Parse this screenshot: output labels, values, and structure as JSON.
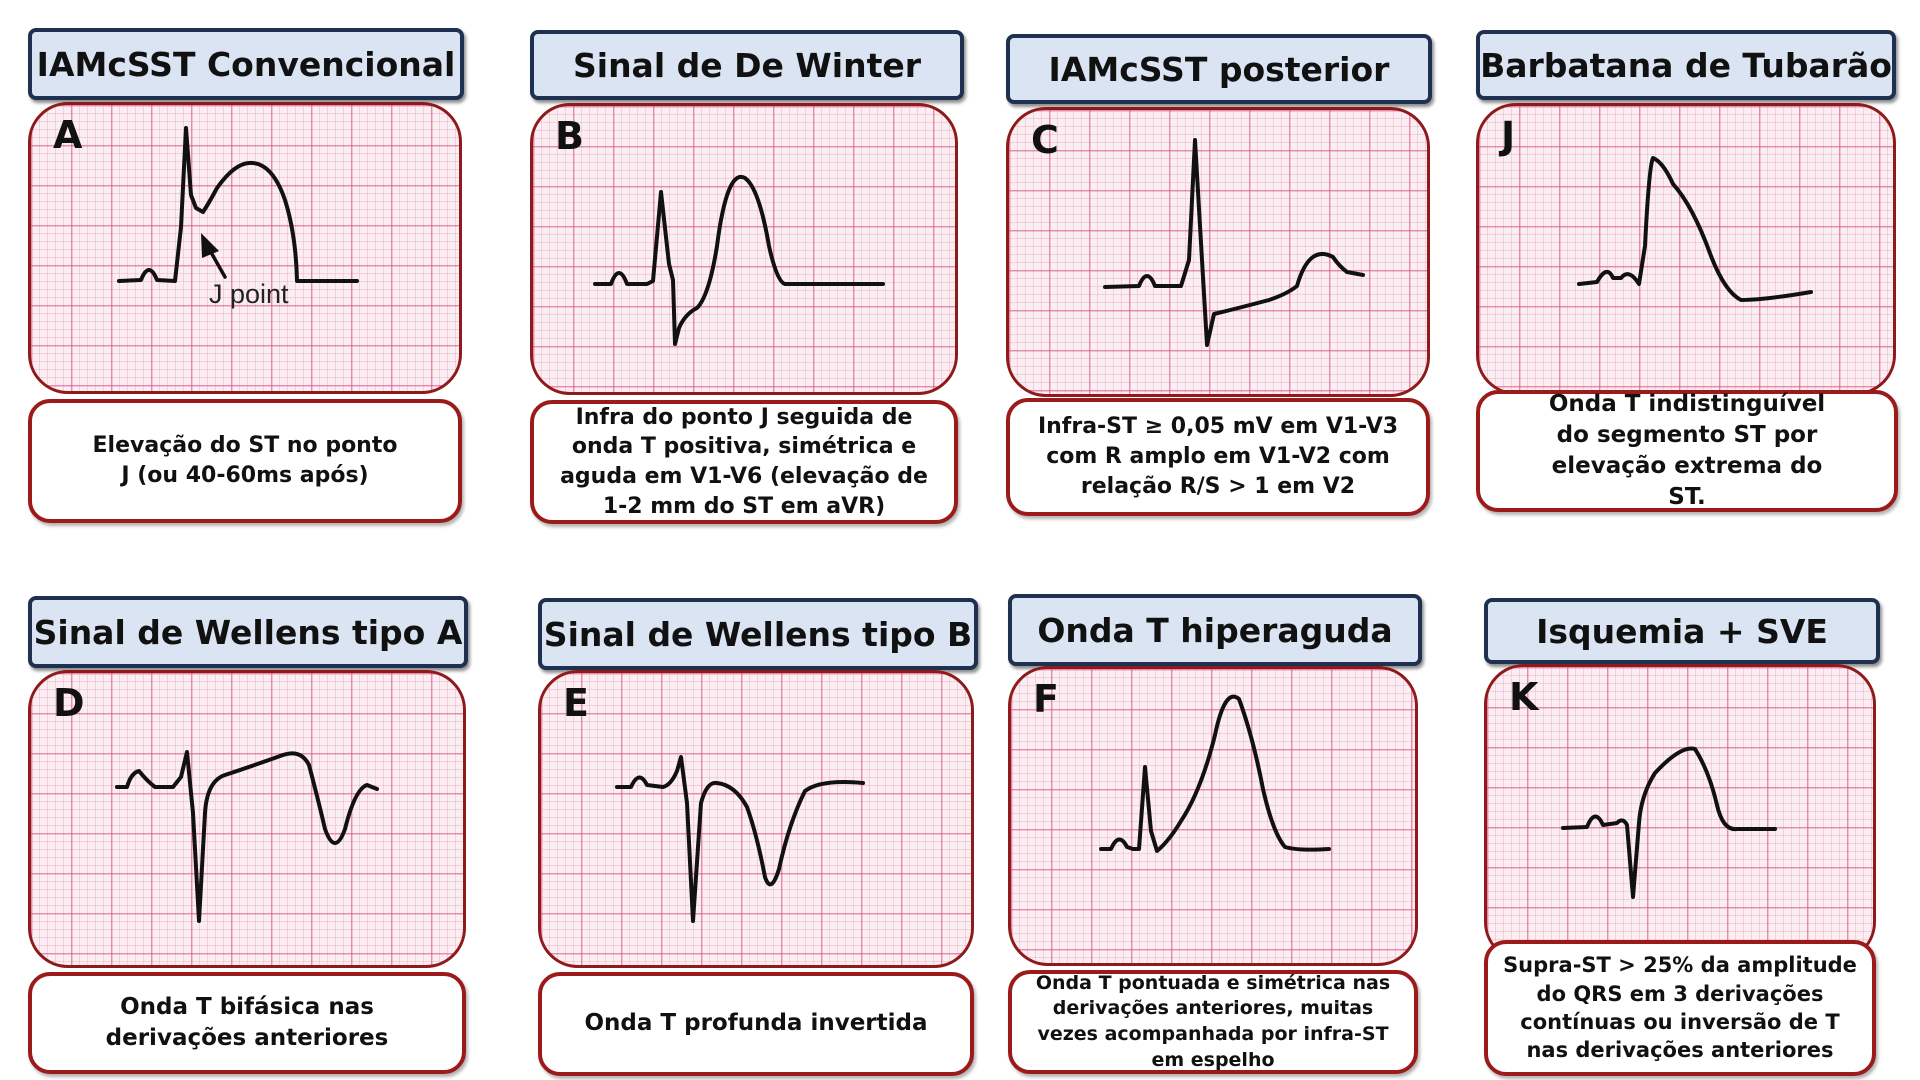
{
  "panels": [
    {
      "title": "IAMcSST Convencional",
      "letter": "A",
      "description": "Elevação do ST no ponto J (ou 40-60ms após)",
      "annotation": "J point"
    },
    {
      "title": "Sinal de De Winter",
      "letter": "B",
      "description": "Infra do ponto J seguida de onda T positiva, simétrica e aguda em V1-V6 (elevação de 1-2 mm do ST em aVR)"
    },
    {
      "title": "IAMcSST posterior",
      "letter": "C",
      "description": "Infra-ST ≥ 0,05 mV em V1-V3 com R amplo em V1-V2 com relação R/S > 1 em V2"
    },
    {
      "title": "Barbatana de Tubarão",
      "letter": "J",
      "description": "Onda T indistinguível do segmento ST por elevação extrema do ST."
    },
    {
      "title": "Sinal de Wellens tipo A",
      "letter": "D",
      "description": "Onda T bifásica nas derivações anteriores"
    },
    {
      "title": "Sinal de Wellens tipo B",
      "letter": "E",
      "description": "Onda T profunda invertida"
    },
    {
      "title": "Onda T hiperaguda",
      "letter": "F",
      "description": "Onda T pontuada e simétrica nas derivações anteriores, muitas vezes acompanhada por infra-ST em espelho"
    },
    {
      "title": "Isquemia + SVE",
      "letter": "K",
      "description": "Supra-ST > 25% da amplitude do QRS em 3 derivações contínuas ou inversão de T nas derivações anteriores"
    }
  ],
  "colors": {
    "title_bg": "#dae4f2",
    "title_border": "#1f3150",
    "box_border": "#9b1b1b",
    "grid_bg": "#fbeef3",
    "grid_line": "#d85382"
  }
}
